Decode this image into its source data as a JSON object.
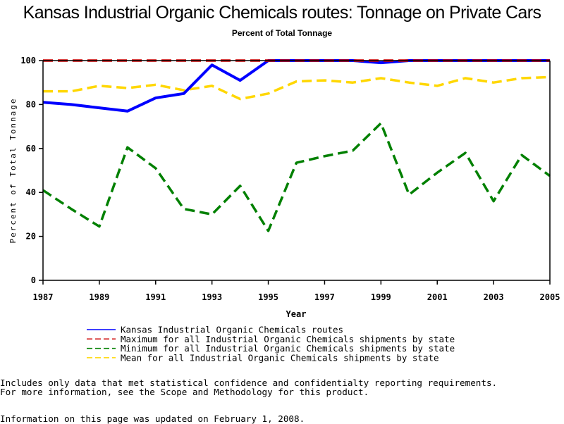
{
  "chart_data": {
    "type": "line",
    "title": "Kansas Industrial Organic Chemicals routes: Tonnage on Private Cars",
    "subtitle": "Percent of Total Tonnage",
    "xlabel": "Year",
    "ylabel": "Percent of Total Tonnage",
    "xlim": [
      1987,
      2005
    ],
    "ylim": [
      0,
      100
    ],
    "x_ticks": [
      "1987",
      "1989",
      "1991",
      "1993",
      "1995",
      "1997",
      "1999",
      "2001",
      "2003",
      "2005"
    ],
    "y_ticks": [
      "0",
      "20",
      "40",
      "60",
      "80",
      "100"
    ],
    "grid": false,
    "legend_position": "bottom",
    "x": [
      1987,
      1988,
      1989,
      1990,
      1991,
      1992,
      1993,
      1994,
      1995,
      1996,
      1997,
      1998,
      1999,
      2000,
      2001,
      2002,
      2003,
      2004,
      2005
    ],
    "series": [
      {
        "name": "Kansas Industrial Organic Chemicals routes",
        "color": "#0000ff",
        "style": "solid",
        "values": [
          81,
          80,
          78.5,
          77,
          83,
          85,
          98,
          91,
          100,
          100,
          100,
          100,
          99,
          100,
          100,
          100,
          100,
          100,
          100
        ]
      },
      {
        "name": "Maximum for all Industrial Organic Chemicals shipments by state",
        "color": "#cc0000",
        "style": "dashed",
        "values": [
          100,
          100,
          100,
          100,
          100,
          100,
          100,
          100,
          100,
          100,
          100,
          100,
          100,
          100,
          100,
          100,
          100,
          100,
          100
        ]
      },
      {
        "name": "Minimum for all Industrial Organic Chemicals shipments by state",
        "color": "#008000",
        "style": "dashed",
        "values": [
          41,
          32.5,
          24.5,
          60.5,
          51,
          32.5,
          30,
          43,
          22.5,
          53.5,
          56.5,
          59,
          71.5,
          39,
          49,
          58,
          36,
          57,
          47.5
        ]
      },
      {
        "name": "Mean for all Industrial Organic Chemicals shipments by state",
        "color": "#ffd700",
        "style": "dashed",
        "values": [
          86,
          86,
          88.5,
          87.5,
          89,
          86.5,
          88.5,
          82.5,
          85,
          90.5,
          91,
          90,
          92,
          90,
          88.5,
          92,
          90,
          92,
          92.5
        ]
      }
    ]
  },
  "notes": {
    "line1": "Includes only data that met statistical confidence and confidentialty reporting requirements.",
    "line2": "For more information, see the Scope and Methodology for this product.",
    "updated": "Information on this page was updated on February 1, 2008."
  }
}
